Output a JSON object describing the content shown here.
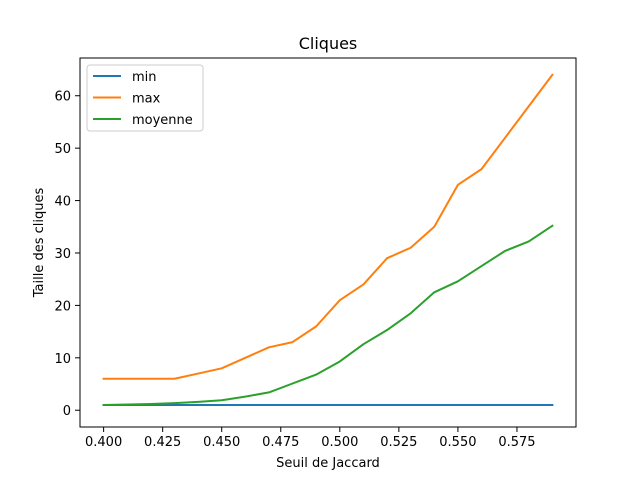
{
  "chart_data": {
    "type": "line",
    "title": "Cliques",
    "xlabel": "Seuil de Jaccard",
    "ylabel": "Taille des cliques",
    "xlim": [
      0.39,
      0.6
    ],
    "ylim": [
      -3.2,
      67.2
    ],
    "xticks": [
      0.4,
      0.425,
      0.45,
      0.475,
      0.5,
      0.525,
      0.55,
      0.575
    ],
    "xtick_labels": [
      "0.400",
      "0.425",
      "0.450",
      "0.475",
      "0.500",
      "0.525",
      "0.550",
      "0.575"
    ],
    "yticks": [
      0,
      10,
      20,
      30,
      40,
      50,
      60
    ],
    "ytick_labels": [
      "0",
      "10",
      "20",
      "30",
      "40",
      "50",
      "60"
    ],
    "grid": false,
    "legend_position": "top-left",
    "x": [
      0.4,
      0.41,
      0.42,
      0.43,
      0.44,
      0.45,
      0.46,
      0.47,
      0.48,
      0.49,
      0.5,
      0.51,
      0.52,
      0.53,
      0.54,
      0.55,
      0.56,
      0.57,
      0.58,
      0.59
    ],
    "series": [
      {
        "name": "min",
        "color": "#1f77b4",
        "values": [
          1,
          1,
          1,
          1,
          1,
          1,
          1,
          1,
          1,
          1,
          1,
          1,
          1,
          1,
          1,
          1,
          1,
          1,
          1,
          1
        ]
      },
      {
        "name": "max",
        "color": "#ff7f0e",
        "values": [
          6,
          6,
          6,
          6,
          7,
          8,
          10,
          12,
          13,
          16,
          21,
          24,
          29,
          31,
          35,
          43,
          46,
          52,
          58,
          64
        ]
      },
      {
        "name": "moyenne",
        "color": "#2ca02c",
        "values": [
          1.0,
          1.1,
          1.2,
          1.35,
          1.6,
          1.9,
          2.6,
          3.4,
          5.1,
          6.8,
          9.3,
          12.6,
          15.3,
          18.5,
          22.5,
          24.6,
          27.5,
          30.4,
          32.2,
          35.2
        ]
      }
    ]
  }
}
